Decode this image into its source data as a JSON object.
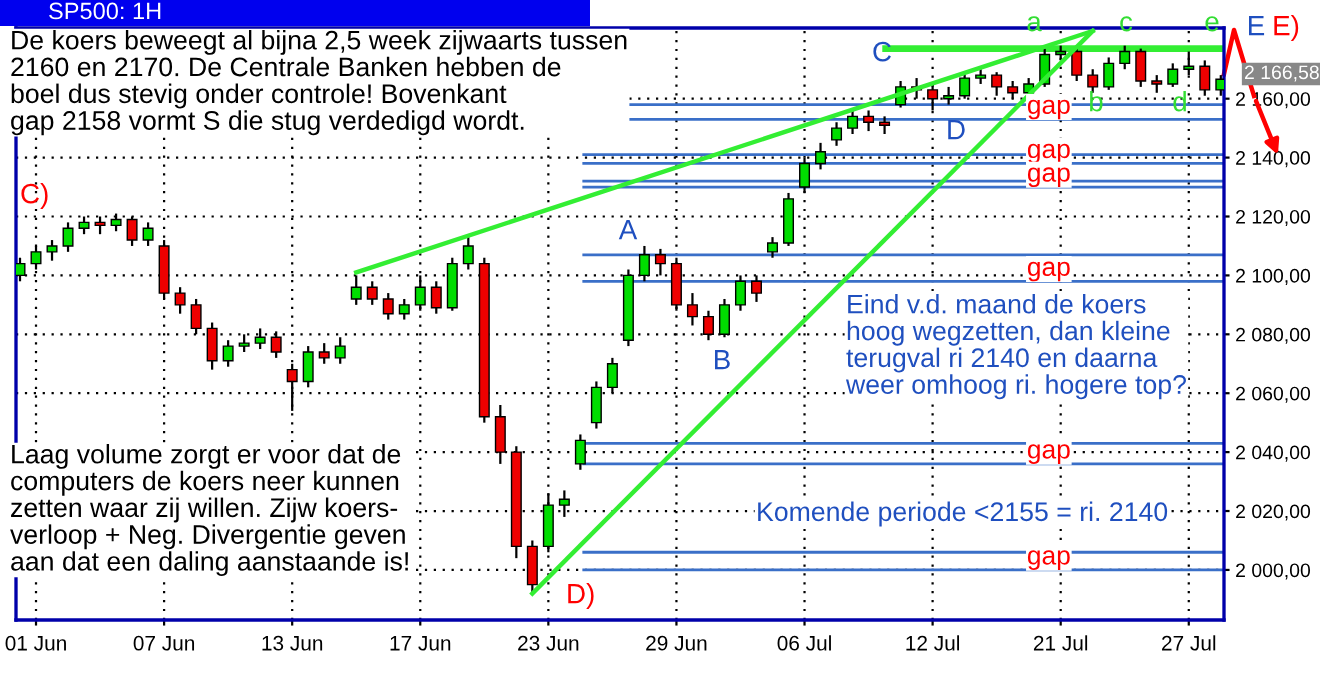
{
  "chart_data": {
    "type": "candlestick",
    "title": "SP500: 1H",
    "categories": [
      null,
      "01 Jun",
      null,
      null,
      null,
      null,
      null,
      null,
      null,
      "07 Jun",
      null,
      null,
      null,
      null,
      null,
      null,
      null,
      "13 Jun",
      null,
      null,
      null,
      null,
      null,
      null,
      null,
      "17 Jun",
      null,
      null,
      null,
      null,
      null,
      null,
      null,
      "23 Jun",
      null,
      null,
      null,
      null,
      null,
      null,
      null,
      "29 Jun",
      null,
      null,
      null,
      null,
      null,
      null,
      null,
      "06 Jul",
      null,
      null,
      null,
      null,
      null,
      null,
      null,
      "12 Jul",
      null,
      null,
      null,
      null,
      null,
      null,
      null,
      "21 Jul",
      null,
      null,
      null,
      null,
      null,
      null,
      null,
      "27 Jul",
      null,
      null
    ],
    "ohlc": [
      [
        2100,
        2106,
        2098,
        2104
      ],
      [
        2104,
        2110,
        2102,
        2108
      ],
      [
        2108,
        2112,
        2105,
        2110
      ],
      [
        2110,
        2118,
        2108,
        2116
      ],
      [
        2116,
        2120,
        2114,
        2118
      ],
      [
        2118,
        2120,
        2114,
        2117
      ],
      [
        2117,
        2121,
        2115,
        2119
      ],
      [
        2119,
        2120,
        2110,
        2112
      ],
      [
        2112,
        2118,
        2110,
        2116
      ],
      [
        2110,
        2112,
        2092,
        2094
      ],
      [
        2094,
        2096,
        2087,
        2090
      ],
      [
        2090,
        2092,
        2080,
        2082
      ],
      [
        2082,
        2084,
        2068,
        2071
      ],
      [
        2071,
        2078,
        2069,
        2076
      ],
      [
        2076,
        2080,
        2074,
        2077
      ],
      [
        2077,
        2082,
        2075,
        2079
      ],
      [
        2079,
        2081,
        2072,
        2074
      ],
      [
        2068,
        2070,
        2054,
        2064
      ],
      [
        2064,
        2076,
        2062,
        2074
      ],
      [
        2074,
        2077,
        2070,
        2072
      ],
      [
        2072,
        2079,
        2070,
        2076
      ],
      [
        2092,
        2100,
        2090,
        2096
      ],
      [
        2096,
        2098,
        2090,
        2092
      ],
      [
        2092,
        2094,
        2085,
        2087
      ],
      [
        2087,
        2092,
        2085,
        2090
      ],
      [
        2090,
        2100,
        2088,
        2096
      ],
      [
        2096,
        2098,
        2087,
        2089
      ],
      [
        2089,
        2106,
        2088,
        2104
      ],
      [
        2104,
        2113,
        2102,
        2110
      ],
      [
        2104,
        2106,
        2050,
        2052
      ],
      [
        2052,
        2056,
        2036,
        2040
      ],
      [
        2040,
        2042,
        2004,
        2008
      ],
      [
        2008,
        2010,
        1992,
        1995
      ],
      [
        2008,
        2026,
        2006,
        2022
      ],
      [
        2022,
        2027,
        2018,
        2024
      ],
      [
        2036,
        2046,
        2034,
        2044
      ],
      [
        2050,
        2064,
        2048,
        2062
      ],
      [
        2062,
        2072,
        2060,
        2070
      ],
      [
        2078,
        2102,
        2076,
        2100
      ],
      [
        2100,
        2110,
        2098,
        2107
      ],
      [
        2107,
        2109,
        2100,
        2104
      ],
      [
        2104,
        2106,
        2088,
        2090
      ],
      [
        2090,
        2094,
        2083,
        2086
      ],
      [
        2086,
        2088,
        2078,
        2080
      ],
      [
        2080,
        2092,
        2079,
        2090
      ],
      [
        2090,
        2100,
        2088,
        2098
      ],
      [
        2098,
        2100,
        2091,
        2094
      ],
      [
        2108,
        2113,
        2106,
        2111
      ],
      [
        2111,
        2128,
        2110,
        2126
      ],
      [
        2130,
        2140,
        2128,
        2138
      ],
      [
        2138,
        2145,
        2136,
        2142
      ],
      [
        2146,
        2152,
        2144,
        2150
      ],
      [
        2150,
        2156,
        2148,
        2154
      ],
      [
        2154,
        2156,
        2149,
        2152
      ],
      [
        2152,
        2154,
        2148,
        2151
      ],
      [
        2158,
        2166,
        2157,
        2164
      ],
      [
        2164,
        2167,
        2160,
        2163
      ],
      [
        2163,
        2165,
        2156,
        2160
      ],
      [
        2160,
        2164,
        2158,
        2161
      ],
      [
        2161,
        2169,
        2160,
        2167
      ],
      [
        2167,
        2170,
        2165,
        2168
      ],
      [
        2168,
        2169,
        2161,
        2164
      ],
      [
        2164,
        2166,
        2160,
        2162
      ],
      [
        2162,
        2167,
        2160,
        2165
      ],
      [
        2165,
        2177,
        2164,
        2175
      ],
      [
        2175,
        2178,
        2173,
        2176
      ],
      [
        2176,
        2177,
        2166,
        2168
      ],
      [
        2168,
        2170,
        2162,
        2164
      ],
      [
        2164,
        2174,
        2163,
        2172
      ],
      [
        2172,
        2178,
        2170,
        2176
      ],
      [
        2176,
        2177,
        2164,
        2166
      ],
      [
        2166,
        2168,
        2162,
        2165
      ],
      [
        2165,
        2172,
        2164,
        2170
      ],
      [
        2170,
        2176,
        2168,
        2171
      ],
      [
        2171,
        2173,
        2161,
        2163
      ],
      [
        2163,
        2168,
        2161,
        2166.58
      ]
    ],
    "series": [
      {
        "type": "line",
        "color": "#33ee33",
        "values": [
          null,
          null,
          null,
          null,
          null,
          null,
          null,
          null,
          null,
          null,
          null,
          null,
          null,
          null,
          null,
          null,
          null,
          null,
          null,
          null,
          null,
          2101,
          null,
          null,
          null,
          null,
          null,
          null,
          null,
          null,
          null,
          null,
          null,
          null,
          null,
          null,
          null,
          null,
          null,
          null,
          null,
          null,
          null,
          null,
          null,
          null,
          null,
          null,
          null,
          null,
          null,
          null,
          null,
          null,
          null,
          null,
          null,
          null,
          null,
          null,
          null,
          null,
          null,
          null,
          null,
          null,
          null,
          2183,
          null,
          null,
          null,
          null,
          null,
          null,
          null,
          null
        ]
      },
      {
        "type": "line",
        "color": "#33ee33",
        "values": [
          null,
          null,
          null,
          null,
          null,
          null,
          null,
          null,
          null,
          null,
          null,
          null,
          null,
          null,
          null,
          null,
          null,
          null,
          null,
          null,
          null,
          null,
          null,
          null,
          null,
          null,
          null,
          null,
          null,
          null,
          null,
          null,
          1992,
          null,
          null,
          null,
          null,
          null,
          null,
          null,
          null,
          null,
          null,
          null,
          null,
          null,
          null,
          null,
          null,
          null,
          null,
          null,
          null,
          null,
          null,
          null,
          null,
          null,
          null,
          null,
          null,
          null,
          null,
          null,
          null,
          null,
          null,
          2183,
          null,
          null,
          null,
          null,
          null,
          null,
          null,
          null
        ]
      }
    ],
    "ylim": [
      1983,
      2184
    ],
    "yticks": [
      {
        "value": 2000,
        "label": "2 000,00"
      },
      {
        "value": 2020,
        "label": "2 020,00"
      },
      {
        "value": 2040,
        "label": "2 040,00"
      },
      {
        "value": 2060,
        "label": "2 060,00"
      },
      {
        "value": 2080,
        "label": "2 080,00"
      },
      {
        "value": 2100,
        "label": "2 100,00"
      },
      {
        "value": 2120,
        "label": "2 120,00"
      },
      {
        "value": 2140,
        "label": "2 140,00"
      },
      {
        "value": 2160,
        "label": "2 160,00"
      }
    ],
    "ref_lines": [
      {
        "axis": "y",
        "value": 2177,
        "color": "#33ee33"
      },
      {
        "axis": "y",
        "value": 2158,
        "color": "#3a6fc8"
      },
      {
        "axis": "y",
        "value": 2153,
        "label": "gap",
        "color": "#3a6fc8"
      },
      {
        "axis": "y",
        "value": 2141,
        "color": "#3a6fc8"
      },
      {
        "axis": "y",
        "value": 2138,
        "label": "gap",
        "color": "#3a6fc8"
      },
      {
        "axis": "y",
        "value": 2132,
        "color": "#3a6fc8"
      },
      {
        "axis": "y",
        "value": 2130,
        "label": "gap",
        "color": "#3a6fc8"
      },
      {
        "axis": "y",
        "value": 2107,
        "color": "#3a6fc8"
      },
      {
        "axis": "y",
        "value": 2098,
        "label": "gap",
        "color": "#3a6fc8"
      },
      {
        "axis": "y",
        "value": 2043,
        "color": "#3a6fc8"
      },
      {
        "axis": "y",
        "value": 2036,
        "label": "gap",
        "color": "#3a6fc8"
      },
      {
        "axis": "y",
        "value": 2006,
        "color": "#3a6fc8"
      },
      {
        "axis": "y",
        "value": 2000,
        "label": "gap",
        "color": "#3a6fc8"
      }
    ],
    "grid": true,
    "annotations": [
      "De koers beweegt al bijna 2,5 week zijwaarts tussen\n2160 en 2170. De Centrale Banken hebben de\nboel dus stevig onder controle! Bovenkant\ngap 2158 vormt S die stug verdedigd wordt.",
      "Laag volume zorgt er voor dat de\ncomputers de koers neer kunnen\nzetten waar zij willen. Zijw koers-\nverloop + Neg. Divergentie geven\naan dat een daling aanstaande is!",
      "Eind v.d. maand de koers\nhoog wegzetten, dan kleine\nterugval ri 2140 en daarna\nweer omhoog ri. hogere top?",
      "Komende periode <2155 = ri. 2140",
      "C)",
      "A",
      "B",
      "C",
      "D",
      "D)",
      "a",
      "b",
      "c",
      "d",
      "e",
      "E",
      "E)",
      "2 166,58"
    ]
  }
}
